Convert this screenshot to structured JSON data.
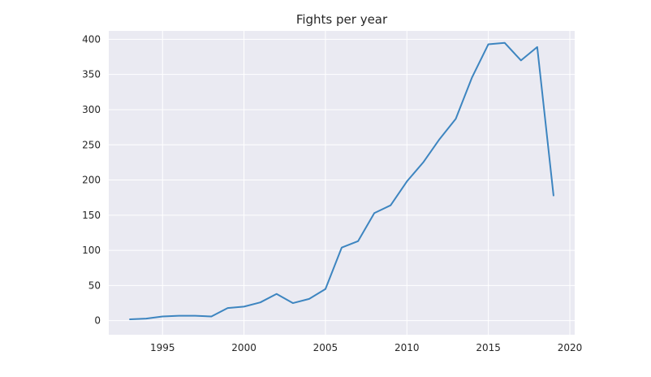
{
  "chart_data": {
    "type": "line",
    "title": "Fights per year",
    "xlabel": "",
    "ylabel": "",
    "xlim": [
      1991.7,
      2020.3
    ],
    "ylim": [
      -20,
      412
    ],
    "xticks": [
      1995,
      2000,
      2005,
      2010,
      2015,
      2020
    ],
    "yticks": [
      0,
      50,
      100,
      150,
      200,
      250,
      300,
      350,
      400
    ],
    "grid": true,
    "background": "#eaeaf2",
    "series": [
      {
        "color": "#3d85c0",
        "x": [
          1993,
          1994,
          1995,
          1996,
          1997,
          1998,
          1999,
          2000,
          2001,
          2002,
          2003,
          2004,
          2005,
          2006,
          2007,
          2008,
          2009,
          2010,
          2011,
          2012,
          2013,
          2014,
          2015,
          2016,
          2017,
          2018,
          2019
        ],
        "y": [
          2,
          3,
          6,
          7,
          7,
          6,
          18,
          20,
          26,
          38,
          25,
          31,
          45,
          104,
          113,
          153,
          164,
          198,
          225,
          258,
          287,
          346,
          393,
          395,
          370,
          389,
          178
        ]
      }
    ]
  }
}
